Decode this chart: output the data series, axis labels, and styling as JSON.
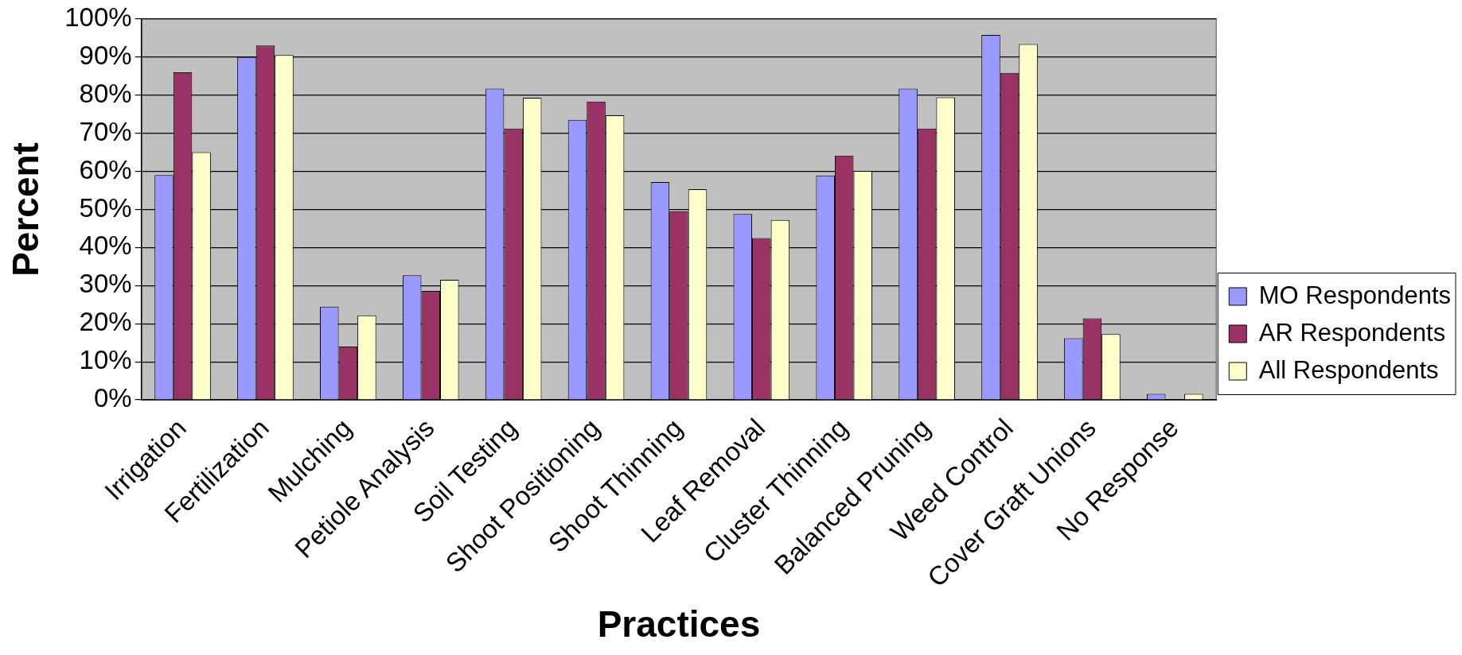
{
  "chart_data": {
    "type": "bar",
    "xlabel": "Practices",
    "ylabel": "Percent",
    "categories": [
      "Irrigation",
      "Fertilization",
      "Mulching",
      "Petiole Analysis",
      "Soil Testing",
      "Shoot Positioning",
      "Shoot Thinning",
      "Leaf Removal",
      "Cluster Thinning",
      "Balanced Pruning",
      "Weed Control",
      "Cover Graft Unions",
      "No Response"
    ],
    "series": [
      {
        "name": "MO Respondents",
        "color": "#9999ff",
        "values": [
          59,
          90,
          24.5,
          32.7,
          81.7,
          73.5,
          57.2,
          48.8,
          58.9,
          81.7,
          95.8,
          16.2,
          1.6
        ]
      },
      {
        "name": "AR Respondents",
        "color": "#993366",
        "values": [
          86,
          93,
          14,
          28.6,
          71.2,
          78.3,
          49.5,
          42.5,
          64.1,
          71.2,
          85.8,
          21.4,
          0
        ]
      },
      {
        "name": "All Respondents",
        "color": "#ffffcc",
        "values": [
          65,
          90.5,
          22.2,
          31.5,
          79.3,
          74.7,
          55.3,
          47.2,
          60.1,
          79.4,
          93.4,
          17.3,
          1.6
        ]
      }
    ],
    "ylim": [
      0,
      100
    ],
    "yticks": [
      {
        "value": 0,
        "label": "0%"
      },
      {
        "value": 10,
        "label": "10%"
      },
      {
        "value": 20,
        "label": "20%"
      },
      {
        "value": 30,
        "label": "30%"
      },
      {
        "value": 40,
        "label": "40%"
      },
      {
        "value": 50,
        "label": "50%"
      },
      {
        "value": 60,
        "label": "60%"
      },
      {
        "value": 70,
        "label": "70%"
      },
      {
        "value": 80,
        "label": "80%"
      },
      {
        "value": 90,
        "label": "90%"
      },
      {
        "value": 100,
        "label": "100%"
      }
    ],
    "grid": "y",
    "legend": "right"
  }
}
